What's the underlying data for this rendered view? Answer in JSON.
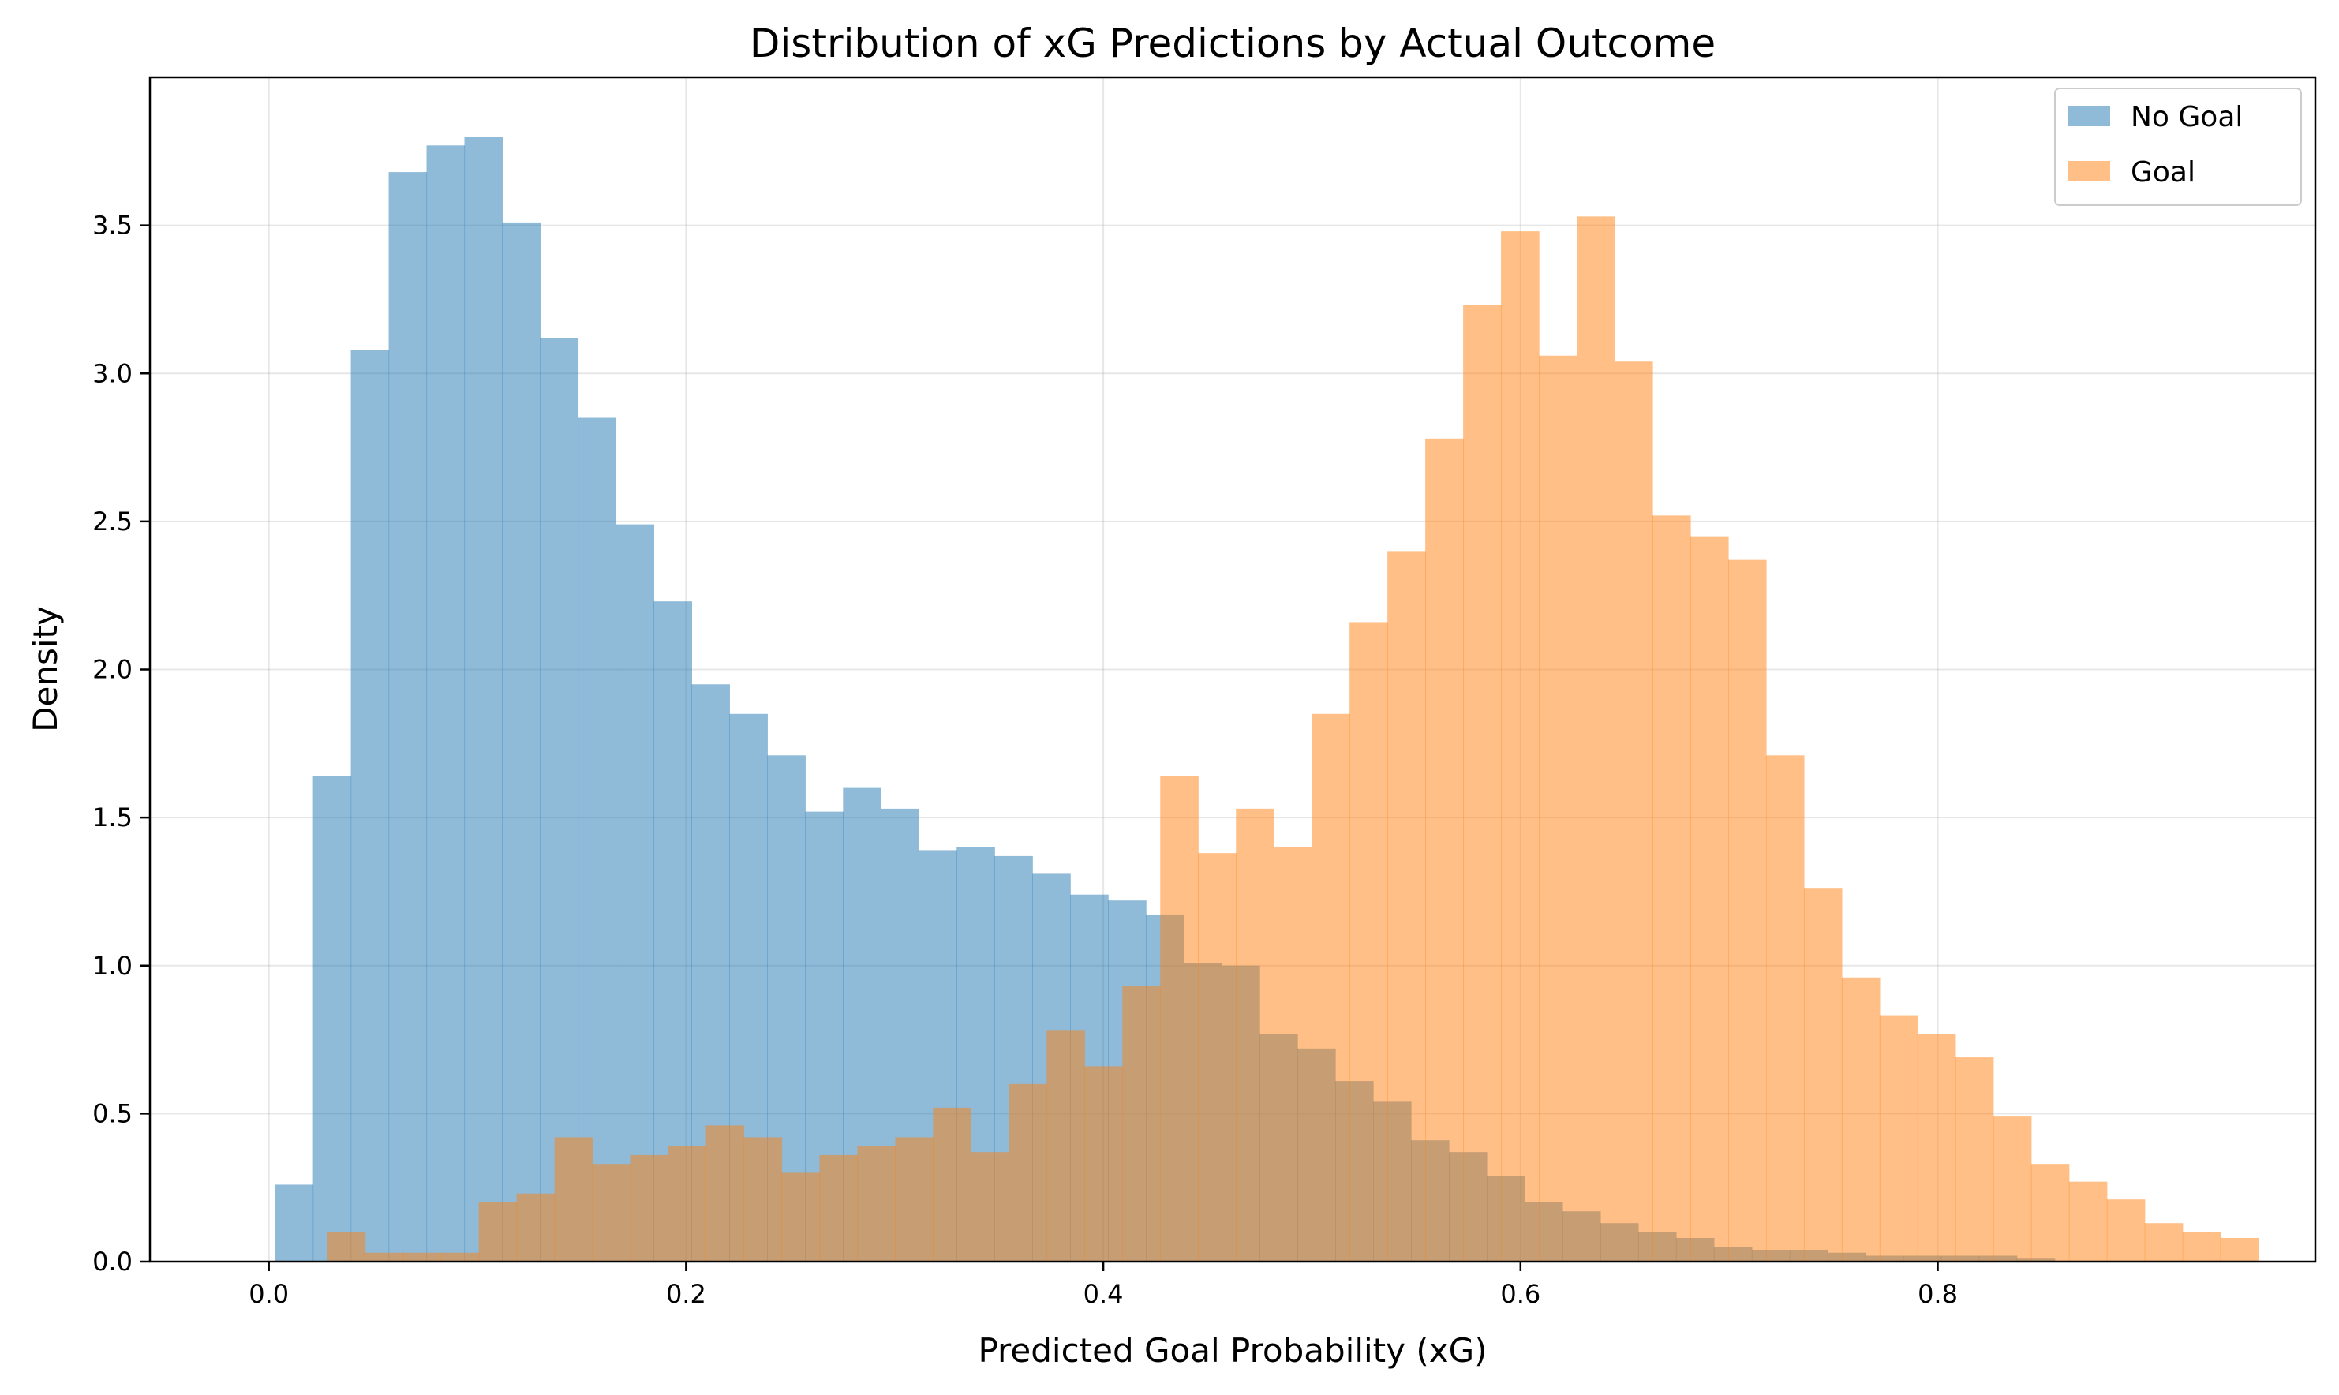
{
  "chart_data": {
    "type": "histogram",
    "title": "Distribution of xG Predictions by Actual Outcome",
    "xlabel": "Predicted Goal Probability (xG)",
    "ylabel": "Density",
    "xlim": [
      -0.057,
      0.981
    ],
    "ylim": [
      0,
      4.0
    ],
    "xticks": [
      0.0,
      0.2,
      0.4,
      0.6,
      0.8
    ],
    "xtick_labels": [
      "0.0",
      "0.2",
      "0.4",
      "0.6",
      "0.8"
    ],
    "yticks": [
      0.0,
      0.5,
      1.0,
      1.5,
      2.0,
      2.5,
      3.0,
      3.5
    ],
    "ytick_labels": [
      "0.0",
      "0.5",
      "1.0",
      "1.5",
      "2.0",
      "2.5",
      "3.0",
      "3.5"
    ],
    "grid": true,
    "legend_position": "upper right",
    "alpha": 0.5,
    "series": [
      {
        "name": "No Goal",
        "color": "#1f77b4",
        "bin_start": 0.003,
        "bin_width": 0.01815,
        "values": [
          0.26,
          1.64,
          3.08,
          3.68,
          3.77,
          3.8,
          3.51,
          3.12,
          2.85,
          2.49,
          2.23,
          1.95,
          1.85,
          1.71,
          1.52,
          1.6,
          1.53,
          1.39,
          1.4,
          1.37,
          1.31,
          1.24,
          1.22,
          1.17,
          1.01,
          1.0,
          0.77,
          0.72,
          0.61,
          0.54,
          0.41,
          0.37,
          0.29,
          0.2,
          0.17,
          0.13,
          0.1,
          0.08,
          0.05,
          0.04,
          0.04,
          0.03,
          0.02,
          0.02,
          0.02,
          0.02,
          0.01
        ]
      },
      {
        "name": "Goal",
        "color": "#ff7f0e",
        "bin_start": 0.028,
        "bin_width": 0.01815,
        "values": [
          0.1,
          0.03,
          0.03,
          0.03,
          0.2,
          0.23,
          0.42,
          0.33,
          0.36,
          0.39,
          0.46,
          0.42,
          0.3,
          0.36,
          0.39,
          0.42,
          0.52,
          0.37,
          0.6,
          0.78,
          0.66,
          0.93,
          1.64,
          1.38,
          1.53,
          1.4,
          1.85,
          2.16,
          2.4,
          2.78,
          3.23,
          3.48,
          3.06,
          3.53,
          3.04,
          2.52,
          2.45,
          2.37,
          1.71,
          1.26,
          0.96,
          0.83,
          0.77,
          0.69,
          0.49,
          0.33,
          0.27,
          0.21,
          0.13,
          0.1,
          0.08
        ]
      }
    ]
  }
}
